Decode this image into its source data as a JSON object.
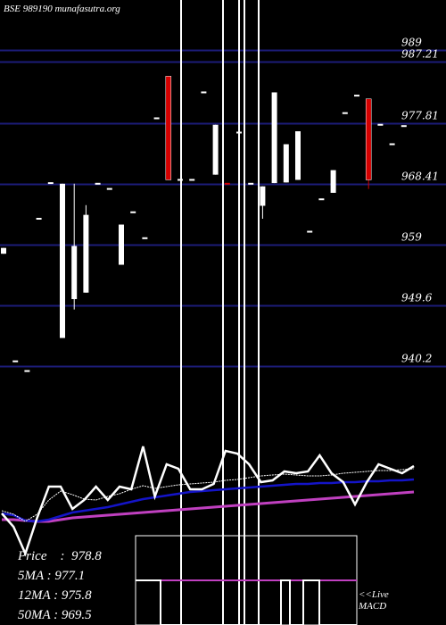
{
  "header": {
    "code": "BSE 989190",
    "site": "munafasutra.org"
  },
  "colors": {
    "background": "#000000",
    "gridline": "#1c1c78",
    "candle_up": "#ffffff",
    "candle_down": "#d40000",
    "ma_short": "#ffffff",
    "ma_mid": "#1414c8",
    "ma_long": "#c040c0",
    "macd_line": "#c040c0"
  },
  "stats": {
    "price_label": "Price",
    "price": "978.8",
    "ma5_label": "5MA",
    "ma5": "977.1",
    "ma12_label": "12MA",
    "ma12": "975.8",
    "ma50_label": "50MA",
    "ma50": "969.5"
  },
  "macd_label": {
    "line1": "<<Live",
    "line2": "MACD"
  },
  "chart_data": {
    "type": "candlestick",
    "y_ticks": [
      "989",
      "987.21",
      "977.81",
      "968.41",
      "959",
      "949.6",
      "940.2"
    ],
    "y_tick_values": [
      989,
      987.21,
      977.81,
      968.41,
      959,
      949.6,
      940.2
    ],
    "ylim": [
      932,
      994
    ],
    "candles": [
      {
        "o": 958.5,
        "c": 957.6,
        "h": 958.5,
        "l": 957.6,
        "color": "white"
      },
      {
        "o": 941.0,
        "c": 941.0,
        "h": 941.0,
        "l": 941.0,
        "color": "white"
      },
      {
        "o": 939.5,
        "c": 939.5,
        "h": 939.5,
        "l": 939.5,
        "color": "white"
      },
      {
        "o": 963.0,
        "c": 963.0,
        "h": 963.0,
        "l": 963.0,
        "color": "white"
      },
      {
        "o": 968.5,
        "c": 968.5,
        "h": 968.5,
        "l": 968.5,
        "color": "white"
      },
      {
        "o": 944.6,
        "c": 968.4,
        "h": 968.4,
        "l": 944.6,
        "color": "white"
      },
      {
        "o": 950.6,
        "c": 958.8,
        "h": 968.4,
        "l": 949.0,
        "color": "white"
      },
      {
        "o": 951.6,
        "c": 963.6,
        "h": 965.1,
        "l": 951.6,
        "color": "white"
      },
      {
        "o": 968.4,
        "c": 968.4,
        "h": 968.4,
        "l": 968.4,
        "color": "white"
      },
      {
        "o": 967.6,
        "c": 967.6,
        "h": 967.6,
        "l": 967.6,
        "color": "white"
      },
      {
        "o": 955.9,
        "c": 962.1,
        "h": 962.1,
        "l": 955.9,
        "color": "white"
      },
      {
        "o": 964.0,
        "c": 964.0,
        "h": 964.0,
        "l": 964.0,
        "color": "white"
      },
      {
        "o": 960.0,
        "c": 960.0,
        "h": 960.0,
        "l": 960.0,
        "color": "white"
      },
      {
        "o": 978.5,
        "c": 978.5,
        "h": 978.5,
        "l": 978.5,
        "color": "white"
      },
      {
        "o": 985.0,
        "c": 969.0,
        "h": 985.0,
        "l": 969.0,
        "color": "red"
      },
      {
        "o": 969.0,
        "c": 969.0,
        "h": 969.0,
        "l": 969.0,
        "color": "white"
      },
      {
        "o": 969.0,
        "c": 969.0,
        "h": 969.0,
        "l": 969.0,
        "color": "white"
      },
      {
        "o": 982.5,
        "c": 982.5,
        "h": 982.5,
        "l": 982.5,
        "color": "white"
      },
      {
        "o": 969.8,
        "c": 977.5,
        "h": 977.5,
        "l": 969.8,
        "color": "white"
      },
      {
        "o": 968.4,
        "c": 968.4,
        "h": 968.4,
        "l": 968.4,
        "color": "red"
      },
      {
        "o": 976.3,
        "c": 976.3,
        "h": 976.3,
        "l": 976.3,
        "color": "white"
      },
      {
        "o": 968.4,
        "c": 968.4,
        "h": 968.4,
        "l": 968.4,
        "color": "white"
      },
      {
        "o": 965.0,
        "c": 968.0,
        "h": 968.0,
        "l": 963.0,
        "color": "white"
      },
      {
        "o": 968.5,
        "c": 982.5,
        "h": 982.5,
        "l": 968.5,
        "color": "white"
      },
      {
        "o": 968.6,
        "c": 974.5,
        "h": 974.5,
        "l": 968.6,
        "color": "white"
      },
      {
        "o": 969.0,
        "c": 976.5,
        "h": 976.5,
        "l": 969.0,
        "color": "white"
      },
      {
        "o": 961.0,
        "c": 961.0,
        "h": 961.0,
        "l": 961.0,
        "color": "white"
      },
      {
        "o": 966.0,
        "c": 966.0,
        "h": 966.0,
        "l": 966.0,
        "color": "white"
      },
      {
        "o": 967.0,
        "c": 970.5,
        "h": 970.5,
        "l": 967.0,
        "color": "white"
      },
      {
        "o": 979.3,
        "c": 979.3,
        "h": 979.3,
        "l": 979.3,
        "color": "white"
      },
      {
        "o": 982.0,
        "c": 982.0,
        "h": 982.0,
        "l": 982.0,
        "color": "white"
      },
      {
        "o": 981.5,
        "c": 969.0,
        "h": 981.5,
        "l": 967.6,
        "color": "red"
      },
      {
        "o": 977.5,
        "c": 977.5,
        "h": 977.5,
        "l": 977.5,
        "color": "white"
      },
      {
        "o": 974.5,
        "c": 974.5,
        "h": 974.5,
        "l": 974.5,
        "color": "white"
      },
      {
        "o": 977.3,
        "c": 977.3,
        "h": 977.3,
        "l": 977.3,
        "color": "white"
      }
    ],
    "vertical_markers": 5,
    "ma_short_series": [
      572,
      576,
      584,
      576,
      560,
      550,
      554,
      559,
      560,
      556,
      553,
      548,
      544,
      547,
      545,
      543,
      542,
      541,
      540,
      538,
      537,
      535,
      533,
      532,
      531,
      532,
      533,
      533,
      532,
      530,
      529,
      528,
      527,
      527,
      526,
      525
    ],
    "ma_mid_series": [
      575,
      577,
      583,
      584,
      582,
      578,
      574,
      572,
      570,
      568,
      565,
      562,
      559,
      557,
      555,
      553,
      551,
      550,
      549,
      548,
      547,
      546,
      545,
      544,
      543,
      542,
      542,
      541,
      541,
      540,
      540,
      539,
      539,
      538,
      538,
      537
    ],
    "ma_long_series": [
      582,
      582,
      583,
      584,
      584,
      582,
      580,
      579,
      578,
      577,
      576,
      575,
      574,
      573,
      572,
      571,
      570,
      569,
      568,
      567,
      566,
      565,
      564,
      563,
      562,
      561,
      560,
      559,
      558,
      557,
      556,
      555,
      554,
      553,
      552,
      551
    ],
    "price_line_series": [
      575,
      590,
      620,
      580,
      545,
      545,
      570,
      560,
      545,
      560,
      545,
      548,
      500,
      556,
      520,
      525,
      548,
      548,
      542,
      505,
      508,
      520,
      540,
      538,
      528,
      530,
      528,
      510,
      530,
      540,
      565,
      540,
      520,
      525,
      530,
      522
    ],
    "macd_steps": [
      {
        "x0": 152,
        "x1": 180,
        "high": true
      },
      {
        "x0": 180,
        "x1": 315,
        "high": false
      },
      {
        "x0": 315,
        "x1": 325,
        "high": true
      },
      {
        "x0": 325,
        "x1": 340,
        "high": false
      },
      {
        "x0": 340,
        "x1": 358,
        "high": true
      },
      {
        "x0": 358,
        "x1": 400,
        "high": false
      }
    ]
  }
}
